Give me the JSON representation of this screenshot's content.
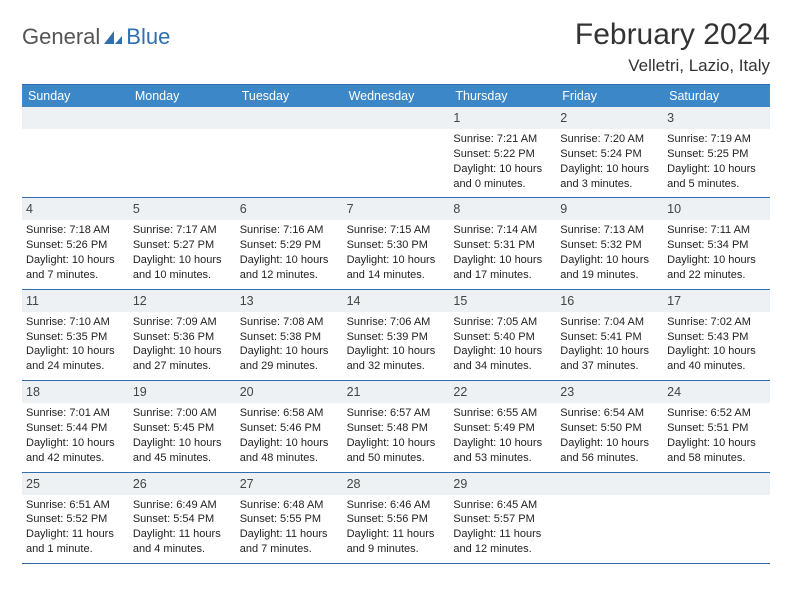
{
  "brand": {
    "general": "General",
    "blue": "Blue"
  },
  "title": "February 2024",
  "location": "Velletri, Lazio, Italy",
  "weekdays": [
    "Sunday",
    "Monday",
    "Tuesday",
    "Wednesday",
    "Thursday",
    "Friday",
    "Saturday"
  ],
  "colors": {
    "accent": "#2f6fb0",
    "header_bg": "#3b87c8",
    "daynum_bg": "#eef1f3",
    "text": "#222"
  },
  "layout": {
    "columns": 7,
    "rows": 5
  },
  "weeks": [
    [
      {
        "blank": true
      },
      {
        "blank": true
      },
      {
        "blank": true
      },
      {
        "blank": true
      },
      {
        "day": "1",
        "sunrise": "Sunrise: 7:21 AM",
        "sunset": "Sunset: 5:22 PM",
        "daylight": "Daylight: 10 hours and 0 minutes."
      },
      {
        "day": "2",
        "sunrise": "Sunrise: 7:20 AM",
        "sunset": "Sunset: 5:24 PM",
        "daylight": "Daylight: 10 hours and 3 minutes."
      },
      {
        "day": "3",
        "sunrise": "Sunrise: 7:19 AM",
        "sunset": "Sunset: 5:25 PM",
        "daylight": "Daylight: 10 hours and 5 minutes."
      }
    ],
    [
      {
        "day": "4",
        "sunrise": "Sunrise: 7:18 AM",
        "sunset": "Sunset: 5:26 PM",
        "daylight": "Daylight: 10 hours and 7 minutes."
      },
      {
        "day": "5",
        "sunrise": "Sunrise: 7:17 AM",
        "sunset": "Sunset: 5:27 PM",
        "daylight": "Daylight: 10 hours and 10 minutes."
      },
      {
        "day": "6",
        "sunrise": "Sunrise: 7:16 AM",
        "sunset": "Sunset: 5:29 PM",
        "daylight": "Daylight: 10 hours and 12 minutes."
      },
      {
        "day": "7",
        "sunrise": "Sunrise: 7:15 AM",
        "sunset": "Sunset: 5:30 PM",
        "daylight": "Daylight: 10 hours and 14 minutes."
      },
      {
        "day": "8",
        "sunrise": "Sunrise: 7:14 AM",
        "sunset": "Sunset: 5:31 PM",
        "daylight": "Daylight: 10 hours and 17 minutes."
      },
      {
        "day": "9",
        "sunrise": "Sunrise: 7:13 AM",
        "sunset": "Sunset: 5:32 PM",
        "daylight": "Daylight: 10 hours and 19 minutes."
      },
      {
        "day": "10",
        "sunrise": "Sunrise: 7:11 AM",
        "sunset": "Sunset: 5:34 PM",
        "daylight": "Daylight: 10 hours and 22 minutes."
      }
    ],
    [
      {
        "day": "11",
        "sunrise": "Sunrise: 7:10 AM",
        "sunset": "Sunset: 5:35 PM",
        "daylight": "Daylight: 10 hours and 24 minutes."
      },
      {
        "day": "12",
        "sunrise": "Sunrise: 7:09 AM",
        "sunset": "Sunset: 5:36 PM",
        "daylight": "Daylight: 10 hours and 27 minutes."
      },
      {
        "day": "13",
        "sunrise": "Sunrise: 7:08 AM",
        "sunset": "Sunset: 5:38 PM",
        "daylight": "Daylight: 10 hours and 29 minutes."
      },
      {
        "day": "14",
        "sunrise": "Sunrise: 7:06 AM",
        "sunset": "Sunset: 5:39 PM",
        "daylight": "Daylight: 10 hours and 32 minutes."
      },
      {
        "day": "15",
        "sunrise": "Sunrise: 7:05 AM",
        "sunset": "Sunset: 5:40 PM",
        "daylight": "Daylight: 10 hours and 34 minutes."
      },
      {
        "day": "16",
        "sunrise": "Sunrise: 7:04 AM",
        "sunset": "Sunset: 5:41 PM",
        "daylight": "Daylight: 10 hours and 37 minutes."
      },
      {
        "day": "17",
        "sunrise": "Sunrise: 7:02 AM",
        "sunset": "Sunset: 5:43 PM",
        "daylight": "Daylight: 10 hours and 40 minutes."
      }
    ],
    [
      {
        "day": "18",
        "sunrise": "Sunrise: 7:01 AM",
        "sunset": "Sunset: 5:44 PM",
        "daylight": "Daylight: 10 hours and 42 minutes."
      },
      {
        "day": "19",
        "sunrise": "Sunrise: 7:00 AM",
        "sunset": "Sunset: 5:45 PM",
        "daylight": "Daylight: 10 hours and 45 minutes."
      },
      {
        "day": "20",
        "sunrise": "Sunrise: 6:58 AM",
        "sunset": "Sunset: 5:46 PM",
        "daylight": "Daylight: 10 hours and 48 minutes."
      },
      {
        "day": "21",
        "sunrise": "Sunrise: 6:57 AM",
        "sunset": "Sunset: 5:48 PM",
        "daylight": "Daylight: 10 hours and 50 minutes."
      },
      {
        "day": "22",
        "sunrise": "Sunrise: 6:55 AM",
        "sunset": "Sunset: 5:49 PM",
        "daylight": "Daylight: 10 hours and 53 minutes."
      },
      {
        "day": "23",
        "sunrise": "Sunrise: 6:54 AM",
        "sunset": "Sunset: 5:50 PM",
        "daylight": "Daylight: 10 hours and 56 minutes."
      },
      {
        "day": "24",
        "sunrise": "Sunrise: 6:52 AM",
        "sunset": "Sunset: 5:51 PM",
        "daylight": "Daylight: 10 hours and 58 minutes."
      }
    ],
    [
      {
        "day": "25",
        "sunrise": "Sunrise: 6:51 AM",
        "sunset": "Sunset: 5:52 PM",
        "daylight": "Daylight: 11 hours and 1 minute."
      },
      {
        "day": "26",
        "sunrise": "Sunrise: 6:49 AM",
        "sunset": "Sunset: 5:54 PM",
        "daylight": "Daylight: 11 hours and 4 minutes."
      },
      {
        "day": "27",
        "sunrise": "Sunrise: 6:48 AM",
        "sunset": "Sunset: 5:55 PM",
        "daylight": "Daylight: 11 hours and 7 minutes."
      },
      {
        "day": "28",
        "sunrise": "Sunrise: 6:46 AM",
        "sunset": "Sunset: 5:56 PM",
        "daylight": "Daylight: 11 hours and 9 minutes."
      },
      {
        "day": "29",
        "sunrise": "Sunrise: 6:45 AM",
        "sunset": "Sunset: 5:57 PM",
        "daylight": "Daylight: 11 hours and 12 minutes."
      },
      {
        "blank": true
      },
      {
        "blank": true
      }
    ]
  ]
}
